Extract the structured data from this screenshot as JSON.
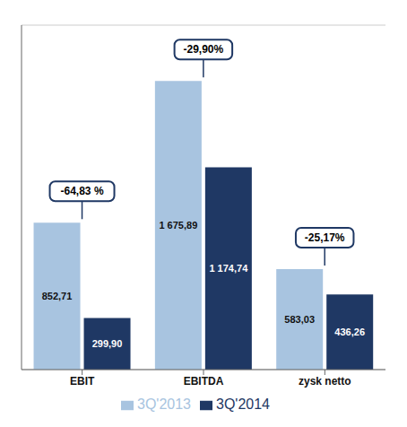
{
  "chart_data": {
    "type": "bar",
    "categories": [
      "EBIT",
      "EBITDA",
      "zysk netto"
    ],
    "series": [
      {
        "name": "3Q'2013",
        "color": "#a8c4e0",
        "values": [
          852.71,
          1675.89,
          583.03
        ],
        "value_labels": [
          "852,71",
          "1 675,89",
          "583,03"
        ]
      },
      {
        "name": "3Q'2014",
        "color": "#1f3864",
        "values": [
          299.9,
          1174.74,
          436.26
        ],
        "value_labels": [
          "299,90",
          "1 174,74",
          "436,26"
        ]
      }
    ],
    "annotations": [
      "-64,83 %",
      "-29,90%",
      "-25,17%"
    ],
    "ylim": [
      0,
      2000
    ],
    "yticks": [
      200,
      400,
      600,
      800,
      1000,
      1200,
      1400,
      1600,
      1800
    ],
    "grid": true,
    "legend": "bottom",
    "data_labels": true,
    "tick_labels": "x"
  }
}
